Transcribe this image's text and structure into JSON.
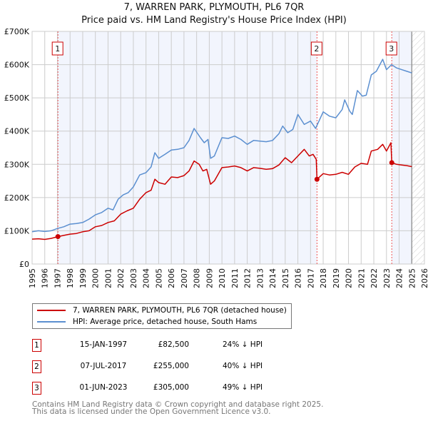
{
  "chart_data": {
    "type": "line",
    "title": "7, WARREN PARK, PLYMOUTH, PL6 7QR",
    "subtitle": "Price paid vs. HM Land Registry's House Price Index (HPI)",
    "xlim": [
      1995,
      2026
    ],
    "ylim": [
      0,
      700000
    ],
    "x_ticks": [
      "1995",
      "1996",
      "1997",
      "1998",
      "1999",
      "2000",
      "2001",
      "2002",
      "2003",
      "2004",
      "2005",
      "2006",
      "2007",
      "2008",
      "2009",
      "2010",
      "2011",
      "2012",
      "2013",
      "2014",
      "2015",
      "2016",
      "2017",
      "2018",
      "2019",
      "2020",
      "2021",
      "2022",
      "2023",
      "2024",
      "2025",
      "2026"
    ],
    "y_ticks": [
      {
        "v": 0,
        "label": "£0"
      },
      {
        "v": 100000,
        "label": "£100K"
      },
      {
        "v": 200000,
        "label": "£200K"
      },
      {
        "v": 300000,
        "label": "£300K"
      },
      {
        "v": 400000,
        "label": "£400K"
      },
      {
        "v": 500000,
        "label": "£500K"
      },
      {
        "v": 600000,
        "label": "£600K"
      },
      {
        "v": 700000,
        "label": "£700K"
      }
    ],
    "grid": true,
    "data_end": 2025.0,
    "series": [
      {
        "name": "7, WARREN PARK, PLYMOUTH, PL6 7QR (detached house)",
        "color": "#cc0000",
        "x": [
          1995,
          1995.5,
          1996,
          1996.5,
          1997.04,
          1997.5,
          1998,
          1998.5,
          1999,
          1999.5,
          2000,
          2000.5,
          2001,
          2001.5,
          2002,
          2002.5,
          2003,
          2003.5,
          2004,
          2004.4,
          2004.7,
          2005,
          2005.5,
          2006,
          2006.5,
          2007,
          2007.4,
          2007.8,
          2008.2,
          2008.5,
          2008.8,
          2009.1,
          2009.4,
          2010,
          2010.5,
          2011,
          2011.5,
          2012,
          2012.5,
          2013,
          2013.5,
          2014,
          2014.5,
          2015,
          2015.5,
          2016,
          2016.5,
          2016.9,
          2017.2,
          2017.45,
          2017.51,
          2018,
          2018.5,
          2019,
          2019.5,
          2020,
          2020.5,
          2021,
          2021.5,
          2021.8,
          2022.3,
          2022.7,
          2023,
          2023.35,
          2023.42,
          2023.8,
          2024.2,
          2024.6,
          2025
        ],
        "y": [
          75000,
          76000,
          74000,
          77000,
          82500,
          86000,
          90000,
          92000,
          97000,
          100000,
          112000,
          116000,
          125000,
          130000,
          150000,
          160000,
          168000,
          195000,
          215000,
          222000,
          255000,
          245000,
          240000,
          262000,
          260000,
          266000,
          280000,
          310000,
          300000,
          280000,
          285000,
          240000,
          250000,
          290000,
          292000,
          295000,
          290000,
          280000,
          290000,
          288000,
          285000,
          287000,
          298000,
          320000,
          305000,
          325000,
          345000,
          325000,
          330000,
          315000,
          255000,
          272000,
          268000,
          270000,
          276000,
          270000,
          292000,
          303000,
          300000,
          340000,
          345000,
          360000,
          340000,
          365000,
          305000,
          300000,
          298000,
          296000,
          293000
        ]
      },
      {
        "name": "HPI: Average price, detached house, South Hams",
        "color": "#5b8fd0",
        "x": [
          1995,
          1995.5,
          1996,
          1996.5,
          1997,
          1997.5,
          1998,
          1998.5,
          1999,
          1999.5,
          2000,
          2000.5,
          2001,
          2001.4,
          2001.8,
          2002.2,
          2002.6,
          2003,
          2003.5,
          2004,
          2004.4,
          2004.7,
          2005,
          2005.5,
          2006,
          2006.5,
          2007,
          2007.4,
          2007.8,
          2008.3,
          2008.6,
          2008.9,
          2009.1,
          2009.4,
          2010,
          2010.5,
          2011,
          2011.5,
          2012,
          2012.5,
          2013,
          2013.5,
          2014,
          2014.5,
          2014.8,
          2015.2,
          2015.6,
          2016.0,
          2016.5,
          2017,
          2017.4,
          2018,
          2018.5,
          2019,
          2019.5,
          2019.7,
          2020.1,
          2020.3,
          2020.7,
          2021.1,
          2021.4,
          2021.8,
          2022.2,
          2022.7,
          2023,
          2023.4,
          2023.8,
          2024.2,
          2024.6,
          2025
        ],
        "y": [
          97000,
          100000,
          98000,
          100000,
          107000,
          112000,
          120000,
          122000,
          125000,
          135000,
          148000,
          155000,
          168000,
          163000,
          195000,
          208000,
          215000,
          232000,
          268000,
          275000,
          292000,
          335000,
          318000,
          330000,
          343000,
          345000,
          350000,
          372000,
          408000,
          380000,
          365000,
          375000,
          318000,
          325000,
          380000,
          378000,
          385000,
          375000,
          360000,
          372000,
          370000,
          368000,
          372000,
          392000,
          415000,
          395000,
          405000,
          450000,
          420000,
          430000,
          408000,
          458000,
          445000,
          440000,
          465000,
          494000,
          460000,
          450000,
          522000,
          505000,
          508000,
          569000,
          580000,
          616000,
          585000,
          600000,
          590000,
          585000,
          580000,
          575000
        ]
      }
    ],
    "sales": [
      {
        "n": "1",
        "x": 1997.04,
        "y": 82500
      },
      {
        "n": "2",
        "x": 2017.51,
        "y": 255000
      },
      {
        "n": "3",
        "x": 2023.42,
        "y": 305000
      }
    ],
    "legend_placement": "below"
  },
  "legend": {
    "property": "7, WARREN PARK, PLYMOUTH, PL6 7QR (detached house)",
    "hpi": "HPI: Average price, detached house, South Hams"
  },
  "colors": {
    "property": "#cc0000",
    "hpi": "#5b8fd0",
    "shade": "#f2f5fd",
    "grid": "#cccccc"
  },
  "transactions": [
    {
      "n": "1",
      "date": "15-JAN-1997",
      "price": "£82,500",
      "hpi": "24% ↓ HPI"
    },
    {
      "n": "2",
      "date": "07-JUL-2017",
      "price": "£255,000",
      "hpi": "40% ↓ HPI"
    },
    {
      "n": "3",
      "date": "01-JUN-2023",
      "price": "£305,000",
      "hpi": "49% ↓ HPI"
    }
  ],
  "footer": {
    "line1": "Contains HM Land Registry data © Crown copyright and database right 2025.",
    "line2": "This data is licensed under the Open Government Licence v3.0."
  }
}
